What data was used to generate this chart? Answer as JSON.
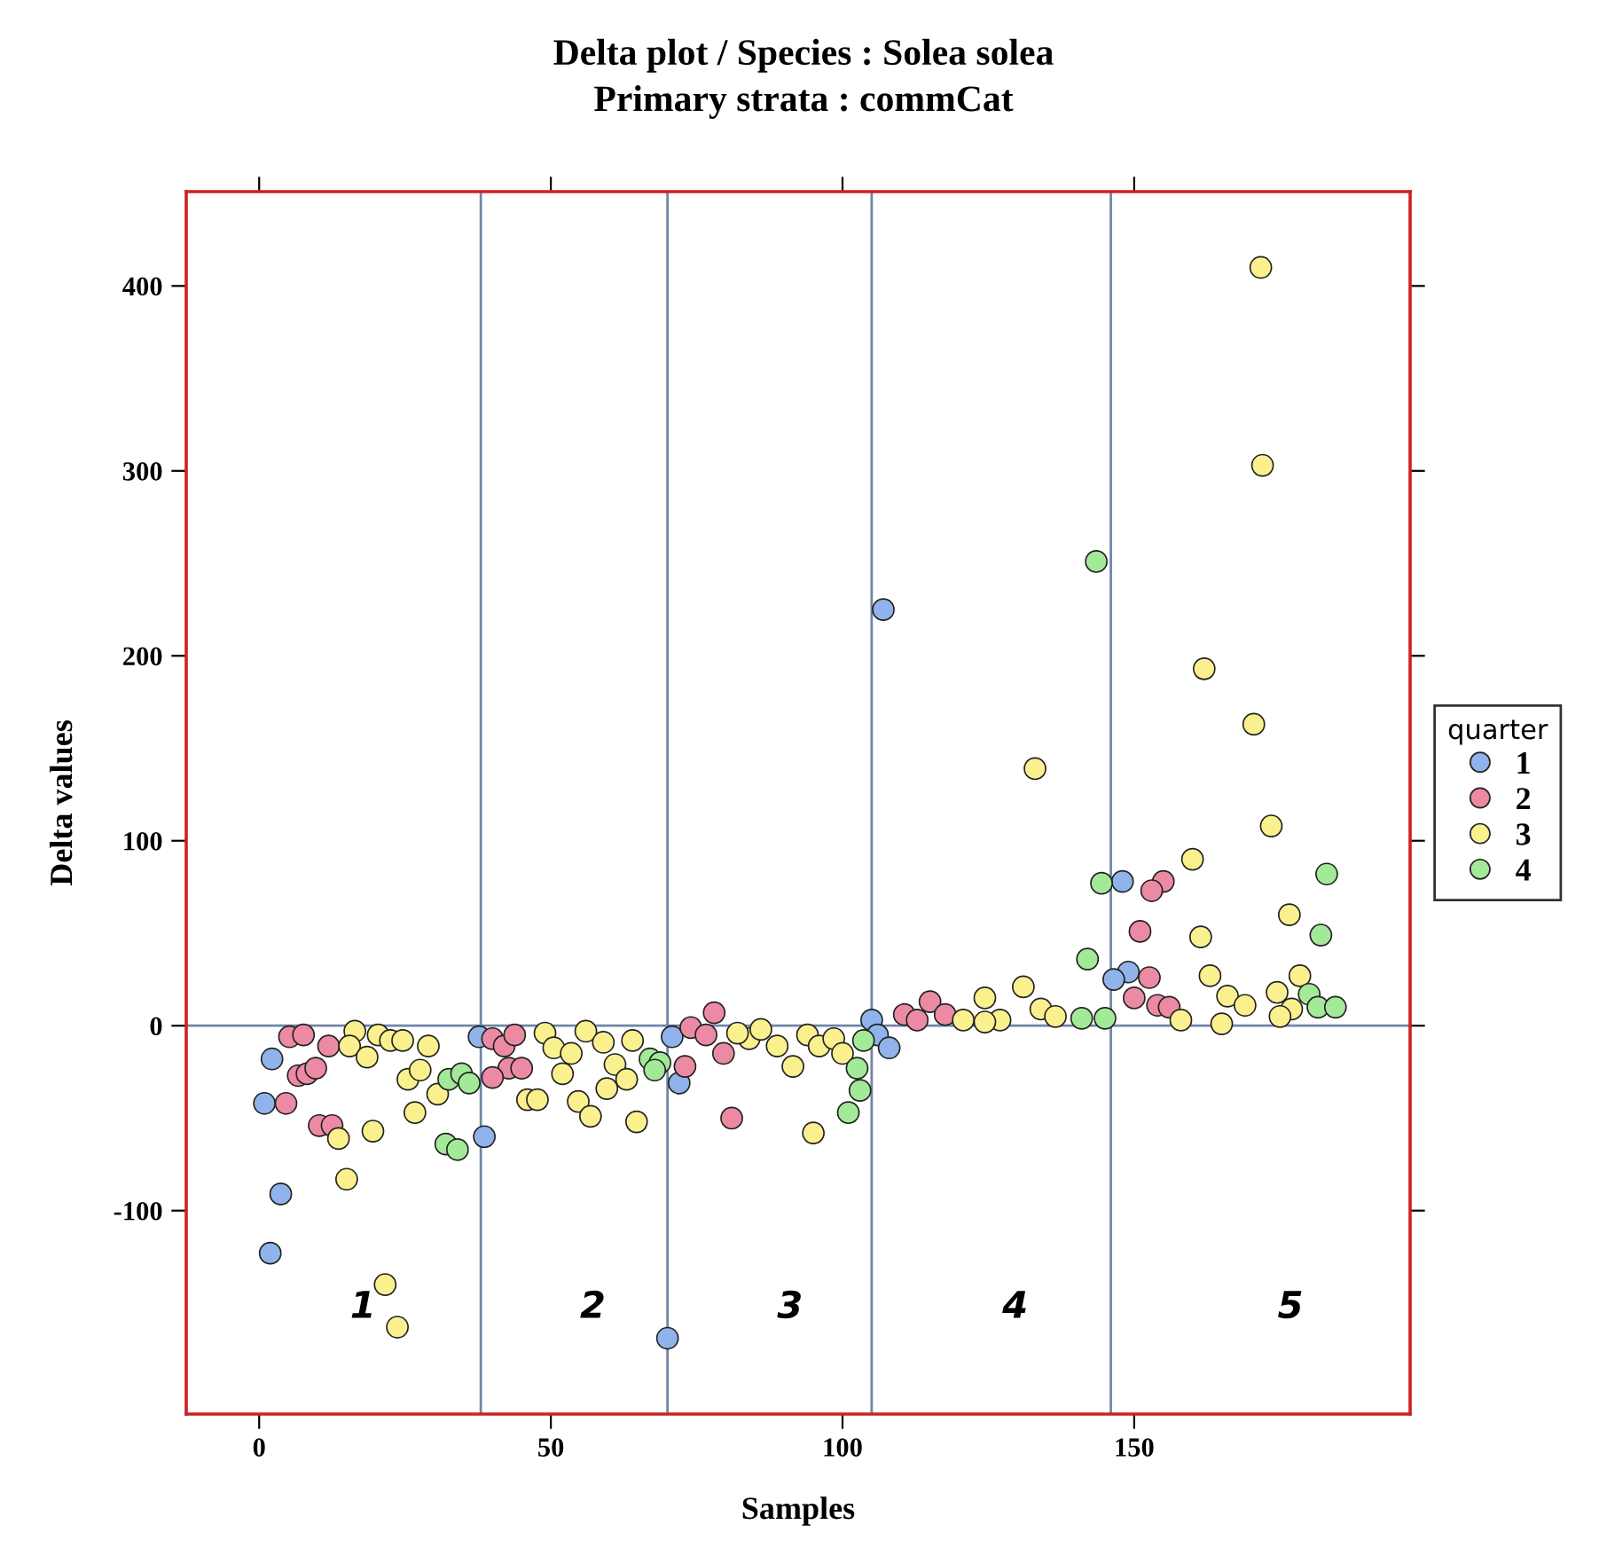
{
  "chart_data": {
    "type": "scatter",
    "title": "Delta plot / Species : Solea solea\nPrimary strata : commCat",
    "xlabel": "Samples",
    "ylabel": "Delta values",
    "legend_title": "quarter",
    "xlim": [
      -12.5,
      197.3
    ],
    "ylim": [
      -210,
      451
    ],
    "xticks": [
      0,
      50,
      100,
      150
    ],
    "yticks": [
      -100,
      0,
      100,
      200,
      300,
      400
    ],
    "grid": false,
    "legend": "right",
    "marker": "circle",
    "series": [
      {
        "name": "1",
        "color": "#8fb3ea",
        "x": [
          2.2,
          0.9,
          3.7,
          1.9,
          37.7,
          38.6,
          70,
          70.8,
          72,
          105,
          106,
          108,
          107,
          148,
          149,
          146.5
        ],
        "values": [
          -18,
          -42,
          -91,
          -123,
          -6,
          -60,
          -169,
          -6,
          -31,
          3,
          -5,
          -12,
          225,
          78,
          29,
          25
        ]
      },
      {
        "name": "2",
        "color": "#ec8aa4",
        "x": [
          5.2,
          7.6,
          11.9,
          6.7,
          8.2,
          9.7,
          4.6,
          10.3,
          12.5,
          40,
          42,
          43.8,
          42.8,
          45,
          40,
          78,
          74,
          76.6,
          79.6,
          73,
          81,
          115,
          110.6,
          112.8,
          117.6,
          155,
          153,
          151,
          152.6,
          150,
          154,
          156
        ],
        "values": [
          -6,
          -5,
          -11,
          -27,
          -26,
          -23,
          -42,
          -54,
          -54,
          -7,
          -11,
          -5,
          -23,
          -23,
          -28,
          7,
          -1,
          -5,
          -15,
          -22,
          -50,
          13,
          6,
          3,
          6,
          78,
          73,
          51,
          26,
          15,
          11,
          10
        ]
      },
      {
        "name": "3",
        "color": "#fbf08e",
        "x": [
          16.4,
          15.5,
          18.5,
          20.4,
          22.5,
          24.6,
          29,
          25.5,
          27.6,
          30.6,
          26.7,
          19.5,
          13.6,
          15,
          21.6,
          23.7,
          49,
          50.5,
          53.5,
          56,
          59,
          64,
          61,
          63,
          59.6,
          52,
          46,
          47.7,
          54.7,
          56.8,
          64.7,
          84,
          86,
          88.8,
          91.5,
          94,
          96,
          98.5,
          100,
          95,
          82,
          124.4,
          131,
          134,
          120.7,
          127,
          136.5,
          133,
          124.4,
          171.7,
          172,
          162,
          170.5,
          173.5,
          160,
          161.4,
          176.6,
          163,
          178.4,
          166,
          174.5,
          169,
          158,
          165,
          177,
          175
        ],
        "values": [
          -3,
          -11,
          -17,
          -5,
          -8,
          -8,
          -11,
          -29,
          -24,
          -37,
          -47,
          -57,
          -61,
          -83,
          -140,
          -163,
          -4,
          -12,
          -15,
          -3,
          -9,
          -8,
          -21,
          -29,
          -34,
          -26,
          -40,
          -40,
          -41,
          -49,
          -52,
          -7,
          -2,
          -11,
          -22,
          -5,
          -11,
          -7,
          -15,
          -58,
          -4,
          15,
          21,
          9,
          3,
          3,
          5,
          139,
          2,
          410,
          303,
          193,
          163,
          108,
          90,
          48,
          60,
          27,
          27,
          16,
          18,
          11,
          3,
          1,
          9,
          5
        ]
      },
      {
        "name": "4",
        "color": "#a3ea98",
        "x": [
          32.5,
          34.7,
          36,
          32,
          34,
          67,
          68.7,
          67.8,
          103,
          101,
          102.5,
          103.6,
          145,
          141,
          143.5,
          144.4,
          142,
          183,
          182,
          180,
          181.5,
          184.5
        ],
        "values": [
          -29,
          -26,
          -31,
          -64,
          -67,
          -18,
          -20,
          -24,
          -35,
          -47,
          -23,
          -8,
          4,
          4,
          251,
          77,
          36,
          82,
          49,
          17,
          10,
          10
        ]
      }
    ],
    "ref_lines": [
      {
        "axis": "y",
        "value": 0,
        "color": "#6f86a8"
      },
      {
        "axis": "x",
        "value": 38,
        "color": "#6f86a8"
      },
      {
        "axis": "x",
        "value": 70,
        "color": "#6f86a8"
      },
      {
        "axis": "x",
        "value": 105,
        "color": "#6f86a8"
      },
      {
        "axis": "x",
        "value": 146,
        "color": "#6f86a8"
      }
    ],
    "annotations": [
      "1",
      "2",
      "3",
      "4",
      "5"
    ]
  }
}
